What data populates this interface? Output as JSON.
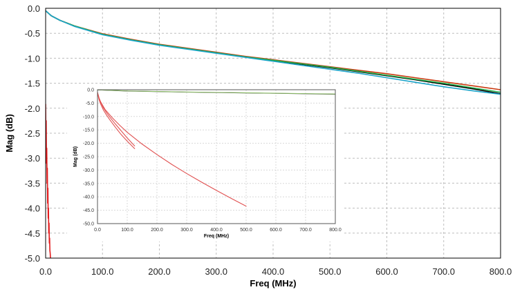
{
  "chart_data": [
    {
      "type": "line",
      "title": "",
      "xlabel": "Freq (MHz)",
      "ylabel": "Mag (dB)",
      "xlim": [
        0,
        800
      ],
      "ylim": [
        -5,
        0
      ],
      "x_ticks": [
        "0.0",
        "100.0",
        "200.0",
        "300.0",
        "400.0",
        "500.0",
        "600.0",
        "700.0",
        "800.0"
      ],
      "y_ticks": [
        "0.0",
        "-0.5",
        "-1.0",
        "-1.5",
        "-2.0",
        "-2.5",
        "-3.0",
        "-3.5",
        "-4.0",
        "-4.5",
        "-5.0"
      ],
      "x_tick_values": [
        0,
        100,
        200,
        300,
        400,
        500,
        600,
        700,
        800
      ],
      "y_tick_values": [
        0,
        -0.5,
        -1,
        -1.5,
        -2,
        -2.5,
        -3,
        -3.5,
        -4,
        -4.5,
        -5
      ],
      "grid": true,
      "legend": "none",
      "series": [
        {
          "color": "#000000",
          "x": [
            0,
            10,
            25,
            50,
            100,
            150,
            200,
            250,
            300,
            350,
            400,
            450,
            500,
            550,
            600,
            650,
            700,
            750,
            800
          ],
          "y": [
            -0.05,
            -0.15,
            -0.24,
            -0.35,
            -0.52,
            -0.63,
            -0.73,
            -0.81,
            -0.89,
            -0.97,
            -1.05,
            -1.12,
            -1.19,
            -1.27,
            -1.35,
            -1.43,
            -1.52,
            -1.61,
            -1.71
          ]
        },
        {
          "color": "#c8380e",
          "x": [
            0,
            10,
            25,
            50,
            100,
            150,
            200,
            250,
            300,
            350,
            400,
            450,
            500,
            550,
            600,
            650,
            700,
            750,
            800
          ],
          "y": [
            -0.05,
            -0.15,
            -0.24,
            -0.35,
            -0.51,
            -0.62,
            -0.72,
            -0.8,
            -0.88,
            -0.96,
            -1.03,
            -1.1,
            -1.17,
            -1.24,
            -1.31,
            -1.39,
            -1.47,
            -1.55,
            -1.63
          ]
        },
        {
          "color": "#22b14c",
          "x": [
            0,
            10,
            25,
            50,
            100,
            150,
            200,
            250,
            300,
            350,
            400,
            450,
            500,
            550,
            600,
            650,
            700,
            750,
            800
          ],
          "y": [
            -0.05,
            -0.15,
            -0.24,
            -0.35,
            -0.52,
            -0.63,
            -0.73,
            -0.81,
            -0.89,
            -0.97,
            -1.04,
            -1.11,
            -1.18,
            -1.26,
            -1.34,
            -1.42,
            -1.5,
            -1.59,
            -1.68
          ]
        },
        {
          "color": "#1aa3c9",
          "x": [
            0,
            10,
            25,
            50,
            100,
            150,
            200,
            250,
            300,
            350,
            400,
            450,
            500,
            550,
            600,
            650,
            700,
            750,
            800
          ],
          "y": [
            -0.05,
            -0.15,
            -0.24,
            -0.36,
            -0.53,
            -0.64,
            -0.74,
            -0.82,
            -0.9,
            -0.98,
            -1.06,
            -1.14,
            -1.22,
            -1.3,
            -1.39,
            -1.48,
            -1.57,
            -1.65,
            -1.72
          ]
        },
        {
          "color": "#e31a1c",
          "x": [
            0,
            0.5,
            1.0,
            1.5,
            2.0,
            2.5,
            3.0,
            3.5,
            4.0,
            4.5,
            5.0,
            5.5,
            6.0,
            6.5,
            7.0,
            7.5,
            8.0,
            8.5
          ],
          "y": [
            -1.92,
            -2.6,
            -2.25,
            -3.1,
            -2.8,
            -3.5,
            -3.2,
            -3.9,
            -3.6,
            -4.2,
            -4.0,
            -4.5,
            -4.3,
            -4.7,
            -4.6,
            -4.85,
            -4.9,
            -5.0
          ]
        }
      ]
    },
    {
      "type": "line",
      "title": "",
      "xlabel": "Freq (MHz)",
      "ylabel": "Mag (dB)",
      "xlim": [
        0,
        800
      ],
      "ylim": [
        -50,
        0
      ],
      "x_ticks": [
        "0.0",
        "100.0",
        "200.0",
        "300.0",
        "400.0",
        "500.0",
        "600.0",
        "700.0",
        "800.0"
      ],
      "y_ticks": [
        "0.0",
        "-5.0",
        "-10.0",
        "-15.0",
        "-20.0",
        "-25.0",
        "-30.0",
        "-35.0",
        "-40.0",
        "-45.0",
        "-50.0"
      ],
      "x_tick_values": [
        0,
        100,
        200,
        300,
        400,
        500,
        600,
        700,
        800
      ],
      "y_tick_values": [
        0,
        -5,
        -10,
        -15,
        -20,
        -25,
        -30,
        -35,
        -40,
        -45,
        -50
      ],
      "grid": true,
      "legend": "none",
      "series": [
        {
          "color": "#333333",
          "x": [
            0,
            100,
            200,
            300,
            400,
            500,
            600,
            700,
            800
          ],
          "y": [
            -0.05,
            -0.5,
            -0.7,
            -0.9,
            -1.05,
            -1.2,
            -1.35,
            -1.5,
            -1.7
          ]
        },
        {
          "color": "#8fbf6a",
          "x": [
            0,
            100,
            200,
            300,
            400,
            500,
            600,
            700,
            800
          ],
          "y": [
            -0.05,
            -0.45,
            -0.65,
            -0.85,
            -1.0,
            -1.15,
            -1.3,
            -1.45,
            -1.6
          ]
        },
        {
          "color": "#e05050",
          "x": [
            0,
            5,
            10,
            20,
            30,
            40,
            60,
            80,
            100,
            125
          ],
          "y": [
            -1.0,
            -3.0,
            -4.5,
            -6.8,
            -8.5,
            -10.0,
            -12.8,
            -15.4,
            -18.0,
            -21.0
          ]
        },
        {
          "color": "#e05050",
          "x": [
            0,
            5,
            10,
            20,
            30,
            40,
            60,
            80,
            100,
            125
          ],
          "y": [
            -1.0,
            -3.6,
            -5.2,
            -7.6,
            -9.4,
            -11.0,
            -14.0,
            -16.8,
            -19.2,
            -22.0
          ]
        },
        {
          "color": "#e05050",
          "x": [
            0,
            5,
            10,
            25,
            50,
            75,
            100,
            150,
            200,
            250,
            300,
            350,
            400,
            450,
            500
          ],
          "y": [
            -1.0,
            -3.0,
            -4.4,
            -7.3,
            -10.5,
            -13.3,
            -15.9,
            -20.3,
            -24.2,
            -27.9,
            -31.3,
            -34.5,
            -37.6,
            -40.6,
            -43.5
          ]
        }
      ]
    }
  ]
}
